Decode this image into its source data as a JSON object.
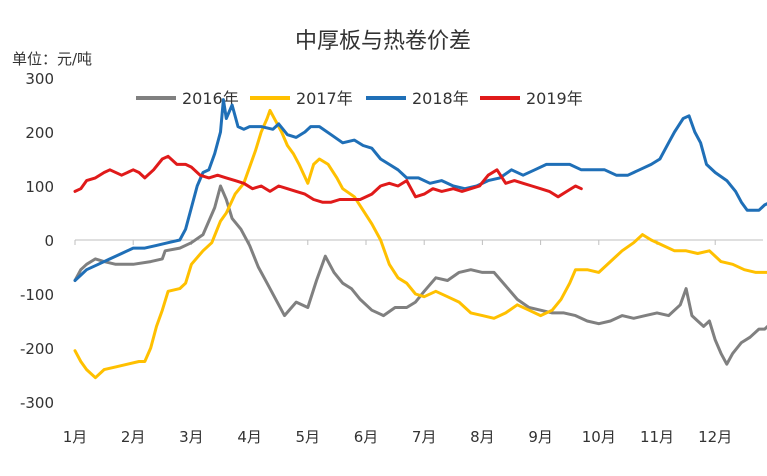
{
  "chart_data": {
    "type": "line",
    "title": "中厚板与热卷价差",
    "unit_label": "单位：元/吨",
    "xlabel": "",
    "ylabel": "",
    "ylim": [
      -300,
      300
    ],
    "yticks": [
      300,
      200,
      100,
      0,
      -100,
      -200,
      -300
    ],
    "ytick_labels": [
      "300",
      "200",
      "100",
      "0",
      "-100",
      "-200",
      "-300"
    ],
    "xlim": [
      1,
      13.05
    ],
    "xticks": [
      1,
      2,
      3,
      4,
      5,
      6,
      7,
      8,
      9,
      10,
      11,
      12
    ],
    "xtick_labels": [
      "1月",
      "2月",
      "3月",
      "4月",
      "5月",
      "6月",
      "7月",
      "8月",
      "9月",
      "10月",
      "11月",
      "12月"
    ],
    "grid": false,
    "legend_position": "top",
    "series": [
      {
        "name": "2016年",
        "color": "#808080",
        "points": [
          [
            1.0,
            -75
          ],
          [
            1.1,
            -55
          ],
          [
            1.2,
            -45
          ],
          [
            1.35,
            -35
          ],
          [
            1.5,
            -40
          ],
          [
            1.7,
            -45
          ],
          [
            2.0,
            -45
          ],
          [
            2.3,
            -40
          ],
          [
            2.5,
            -35
          ],
          [
            2.55,
            -20
          ],
          [
            2.8,
            -15
          ],
          [
            3.0,
            -5
          ],
          [
            3.2,
            10
          ],
          [
            3.4,
            60
          ],
          [
            3.5,
            100
          ],
          [
            3.6,
            75
          ],
          [
            3.7,
            40
          ],
          [
            3.85,
            20
          ],
          [
            4.0,
            -10
          ],
          [
            4.15,
            -50
          ],
          [
            4.3,
            -80
          ],
          [
            4.45,
            -110
          ],
          [
            4.6,
            -140
          ],
          [
            4.8,
            -115
          ],
          [
            5.0,
            -125
          ],
          [
            5.15,
            -75
          ],
          [
            5.3,
            -30
          ],
          [
            5.45,
            -60
          ],
          [
            5.6,
            -80
          ],
          [
            5.75,
            -90
          ],
          [
            5.9,
            -110
          ],
          [
            6.1,
            -130
          ],
          [
            6.3,
            -140
          ],
          [
            6.5,
            -125
          ],
          [
            6.7,
            -125
          ],
          [
            6.85,
            -115
          ],
          [
            7.0,
            -95
          ],
          [
            7.2,
            -70
          ],
          [
            7.4,
            -75
          ],
          [
            7.6,
            -60
          ],
          [
            7.8,
            -55
          ],
          [
            8.0,
            -60
          ],
          [
            8.2,
            -60
          ],
          [
            8.4,
            -85
          ],
          [
            8.6,
            -110
          ],
          [
            8.8,
            -125
          ],
          [
            9.0,
            -130
          ],
          [
            9.2,
            -135
          ],
          [
            9.4,
            -135
          ],
          [
            9.6,
            -140
          ],
          [
            9.8,
            -150
          ],
          [
            10.0,
            -155
          ],
          [
            10.2,
            -150
          ],
          [
            10.4,
            -140
          ],
          [
            10.6,
            -145
          ],
          [
            10.8,
            -140
          ],
          [
            11.0,
            -135
          ],
          [
            11.2,
            -140
          ],
          [
            11.4,
            -120
          ],
          [
            11.5,
            -90
          ],
          [
            11.6,
            -140
          ],
          [
            11.7,
            -150
          ],
          [
            11.8,
            -160
          ],
          [
            11.9,
            -150
          ],
          [
            12.0,
            -185
          ],
          [
            12.1,
            -210
          ],
          [
            12.2,
            -230
          ],
          [
            12.3,
            -210
          ],
          [
            12.45,
            -190
          ],
          [
            12.6,
            -180
          ],
          [
            12.75,
            -165
          ],
          [
            12.85,
            -165
          ],
          [
            12.95,
            -155
          ],
          [
            13.0,
            -195
          ]
        ]
      },
      {
        "name": "2017年",
        "color": "#FFC000",
        "points": [
          [
            1.0,
            -205
          ],
          [
            1.1,
            -225
          ],
          [
            1.2,
            -240
          ],
          [
            1.35,
            -255
          ],
          [
            1.5,
            -240
          ],
          [
            1.7,
            -235
          ],
          [
            1.9,
            -230
          ],
          [
            2.1,
            -225
          ],
          [
            2.2,
            -225
          ],
          [
            2.3,
            -200
          ],
          [
            2.4,
            -160
          ],
          [
            2.5,
            -130
          ],
          [
            2.6,
            -95
          ],
          [
            2.8,
            -90
          ],
          [
            2.9,
            -80
          ],
          [
            3.0,
            -45
          ],
          [
            3.2,
            -20
          ],
          [
            3.35,
            -5
          ],
          [
            3.5,
            35
          ],
          [
            3.6,
            50
          ],
          [
            3.75,
            85
          ],
          [
            3.9,
            105
          ],
          [
            4.0,
            135
          ],
          [
            4.1,
            165
          ],
          [
            4.2,
            200
          ],
          [
            4.3,
            225
          ],
          [
            4.35,
            240
          ],
          [
            4.45,
            220
          ],
          [
            4.55,
            200
          ],
          [
            4.65,
            175
          ],
          [
            4.75,
            160
          ],
          [
            4.85,
            140
          ],
          [
            5.0,
            105
          ],
          [
            5.1,
            140
          ],
          [
            5.2,
            150
          ],
          [
            5.35,
            140
          ],
          [
            5.5,
            115
          ],
          [
            5.6,
            95
          ],
          [
            5.8,
            80
          ],
          [
            5.95,
            55
          ],
          [
            6.1,
            30
          ],
          [
            6.25,
            0
          ],
          [
            6.4,
            -45
          ],
          [
            6.55,
            -70
          ],
          [
            6.7,
            -80
          ],
          [
            6.85,
            -100
          ],
          [
            7.0,
            -105
          ],
          [
            7.2,
            -95
          ],
          [
            7.4,
            -105
          ],
          [
            7.6,
            -115
          ],
          [
            7.8,
            -135
          ],
          [
            8.0,
            -140
          ],
          [
            8.2,
            -145
          ],
          [
            8.4,
            -135
          ],
          [
            8.6,
            -120
          ],
          [
            8.8,
            -130
          ],
          [
            9.0,
            -140
          ],
          [
            9.2,
            -130
          ],
          [
            9.35,
            -110
          ],
          [
            9.5,
            -80
          ],
          [
            9.6,
            -55
          ],
          [
            9.8,
            -55
          ],
          [
            10.0,
            -60
          ],
          [
            10.2,
            -40
          ],
          [
            10.4,
            -20
          ],
          [
            10.6,
            -5
          ],
          [
            10.75,
            10
          ],
          [
            10.9,
            0
          ],
          [
            11.1,
            -10
          ],
          [
            11.3,
            -20
          ],
          [
            11.5,
            -20
          ],
          [
            11.7,
            -25
          ],
          [
            11.9,
            -20
          ],
          [
            12.1,
            -40
          ],
          [
            12.3,
            -45
          ],
          [
            12.5,
            -55
          ],
          [
            12.7,
            -60
          ],
          [
            12.9,
            -60
          ],
          [
            13.0,
            -65
          ]
        ]
      },
      {
        "name": "2018年",
        "color": "#1F6FB7",
        "points": [
          [
            1.0,
            -75
          ],
          [
            1.1,
            -65
          ],
          [
            1.2,
            -55
          ],
          [
            1.4,
            -45
          ],
          [
            1.6,
            -35
          ],
          [
            1.8,
            -25
          ],
          [
            2.0,
            -15
          ],
          [
            2.2,
            -15
          ],
          [
            2.4,
            -10
          ],
          [
            2.6,
            -5
          ],
          [
            2.8,
            0
          ],
          [
            2.9,
            20
          ],
          [
            3.0,
            60
          ],
          [
            3.1,
            100
          ],
          [
            3.2,
            125
          ],
          [
            3.3,
            130
          ],
          [
            3.4,
            160
          ],
          [
            3.5,
            200
          ],
          [
            3.55,
            260
          ],
          [
            3.6,
            225
          ],
          [
            3.7,
            250
          ],
          [
            3.8,
            210
          ],
          [
            3.9,
            205
          ],
          [
            4.0,
            210
          ],
          [
            4.2,
            210
          ],
          [
            4.4,
            205
          ],
          [
            4.5,
            215
          ],
          [
            4.65,
            195
          ],
          [
            4.8,
            190
          ],
          [
            4.95,
            200
          ],
          [
            5.05,
            210
          ],
          [
            5.2,
            210
          ],
          [
            5.4,
            195
          ],
          [
            5.6,
            180
          ],
          [
            5.8,
            185
          ],
          [
            5.95,
            175
          ],
          [
            6.1,
            170
          ],
          [
            6.25,
            150
          ],
          [
            6.4,
            140
          ],
          [
            6.55,
            130
          ],
          [
            6.7,
            115
          ],
          [
            6.9,
            115
          ],
          [
            7.1,
            105
          ],
          [
            7.3,
            110
          ],
          [
            7.5,
            100
          ],
          [
            7.7,
            95
          ],
          [
            7.9,
            100
          ],
          [
            8.1,
            110
          ],
          [
            8.3,
            115
          ],
          [
            8.5,
            130
          ],
          [
            8.7,
            120
          ],
          [
            8.9,
            130
          ],
          [
            9.1,
            140
          ],
          [
            9.3,
            140
          ],
          [
            9.5,
            140
          ],
          [
            9.7,
            130
          ],
          [
            9.9,
            130
          ],
          [
            10.1,
            130
          ],
          [
            10.3,
            120
          ],
          [
            10.5,
            120
          ],
          [
            10.7,
            130
          ],
          [
            10.9,
            140
          ],
          [
            11.05,
            150
          ],
          [
            11.2,
            180
          ],
          [
            11.3,
            200
          ],
          [
            11.45,
            225
          ],
          [
            11.55,
            230
          ],
          [
            11.65,
            200
          ],
          [
            11.75,
            180
          ],
          [
            11.85,
            140
          ],
          [
            12.0,
            125
          ],
          [
            12.2,
            110
          ],
          [
            12.35,
            90
          ],
          [
            12.45,
            70
          ],
          [
            12.55,
            55
          ],
          [
            12.75,
            55
          ],
          [
            12.85,
            65
          ],
          [
            12.95,
            70
          ],
          [
            13.05,
            80
          ]
        ]
      },
      {
        "name": "2019年",
        "color": "#E01A1A",
        "points": [
          [
            1.0,
            90
          ],
          [
            1.1,
            95
          ],
          [
            1.2,
            110
          ],
          [
            1.35,
            115
          ],
          [
            1.5,
            125
          ],
          [
            1.6,
            130
          ],
          [
            1.8,
            120
          ],
          [
            2.0,
            130
          ],
          [
            2.1,
            125
          ],
          [
            2.2,
            115
          ],
          [
            2.35,
            130
          ],
          [
            2.5,
            150
          ],
          [
            2.6,
            155
          ],
          [
            2.75,
            140
          ],
          [
            2.9,
            140
          ],
          [
            3.0,
            135
          ],
          [
            3.15,
            120
          ],
          [
            3.3,
            115
          ],
          [
            3.45,
            120
          ],
          [
            3.6,
            115
          ],
          [
            3.75,
            110
          ],
          [
            3.9,
            105
          ],
          [
            4.05,
            95
          ],
          [
            4.2,
            100
          ],
          [
            4.35,
            90
          ],
          [
            4.5,
            100
          ],
          [
            4.65,
            95
          ],
          [
            4.8,
            90
          ],
          [
            4.95,
            85
          ],
          [
            5.1,
            75
          ],
          [
            5.25,
            70
          ],
          [
            5.4,
            70
          ],
          [
            5.55,
            75
          ],
          [
            5.7,
            75
          ],
          [
            5.9,
            75
          ],
          [
            6.1,
            85
          ],
          [
            6.25,
            100
          ],
          [
            6.4,
            105
          ],
          [
            6.55,
            100
          ],
          [
            6.7,
            110
          ],
          [
            6.85,
            80
          ],
          [
            7.0,
            85
          ],
          [
            7.15,
            95
          ],
          [
            7.3,
            90
          ],
          [
            7.5,
            95
          ],
          [
            7.65,
            90
          ],
          [
            7.8,
            95
          ],
          [
            7.95,
            100
          ],
          [
            8.1,
            120
          ],
          [
            8.25,
            130
          ],
          [
            8.4,
            105
          ],
          [
            8.55,
            110
          ],
          [
            8.7,
            105
          ],
          [
            8.85,
            100
          ],
          [
            9.0,
            95
          ],
          [
            9.15,
            90
          ],
          [
            9.3,
            80
          ],
          [
            9.45,
            90
          ],
          [
            9.6,
            100
          ],
          [
            9.7,
            95
          ]
        ]
      }
    ]
  }
}
